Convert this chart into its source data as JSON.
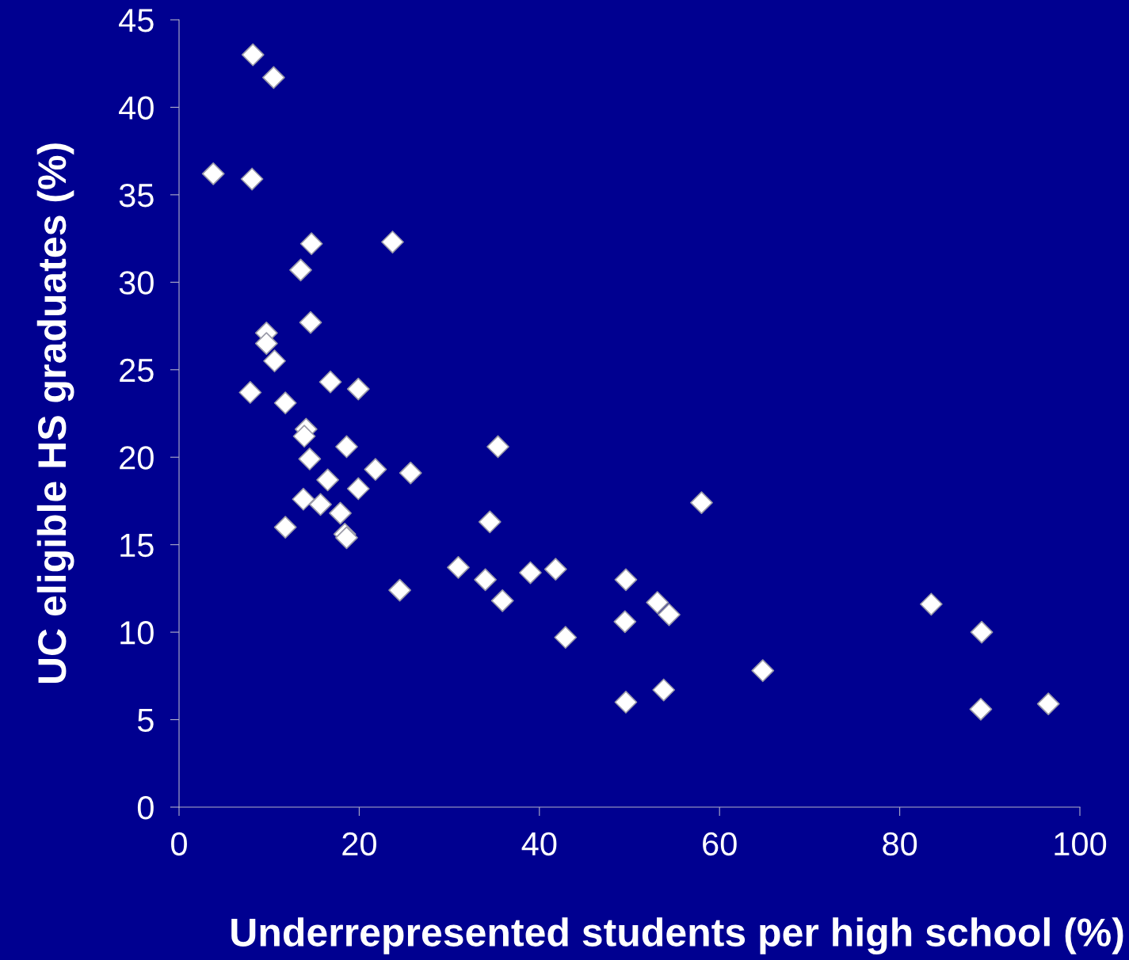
{
  "chart_data": {
    "type": "scatter",
    "xlabel": "Underrepresented students per high school (%)",
    "ylabel": "UC eligible HS graduates (%)",
    "x": [
      8.2,
      10.5,
      3.8,
      8.1,
      14.7,
      23.7,
      13.5,
      14.6,
      9.7,
      9.7,
      10.6,
      16.8,
      19.9,
      7.9,
      11.8,
      14.1,
      13.9,
      18.6,
      35.4,
      14.5,
      21.8,
      25.7,
      16.5,
      19.9,
      13.8,
      15.7,
      58.0,
      17.9,
      18.4,
      18.6,
      11.8,
      34.5,
      31.0,
      41.8,
      39.0,
      34.0,
      49.6,
      35.9,
      24.5,
      53.1,
      54.4,
      83.5,
      49.5,
      42.9,
      89.1,
      64.8,
      53.8,
      49.6,
      96.5,
      89.0
    ],
    "series": [
      {
        "color": "#ffffff",
        "values": [
          43.0,
          41.7,
          36.2,
          35.9,
          32.2,
          32.3,
          30.7,
          27.7,
          27.1,
          26.5,
          25.5,
          24.3,
          23.9,
          23.7,
          23.1,
          21.6,
          21.2,
          20.6,
          20.6,
          19.9,
          19.3,
          19.1,
          18.7,
          18.2,
          17.6,
          17.3,
          17.4,
          16.8,
          15.6,
          15.4,
          16.0,
          16.3,
          13.7,
          13.6,
          13.4,
          13.0,
          13.0,
          11.8,
          12.4,
          11.7,
          11.0,
          11.6,
          10.6,
          9.7,
          10.0,
          7.8,
          6.7,
          6.0,
          5.9,
          5.6
        ]
      }
    ],
    "marker": "diamond",
    "xlim": [
      0,
      100
    ],
    "xticks": [
      0,
      20,
      40,
      60,
      80,
      100
    ],
    "ylim": [
      0,
      45
    ],
    "yticks": [
      0,
      5,
      10,
      15,
      20,
      25,
      30,
      35,
      40,
      45
    ],
    "grid": false,
    "legend": false
  }
}
